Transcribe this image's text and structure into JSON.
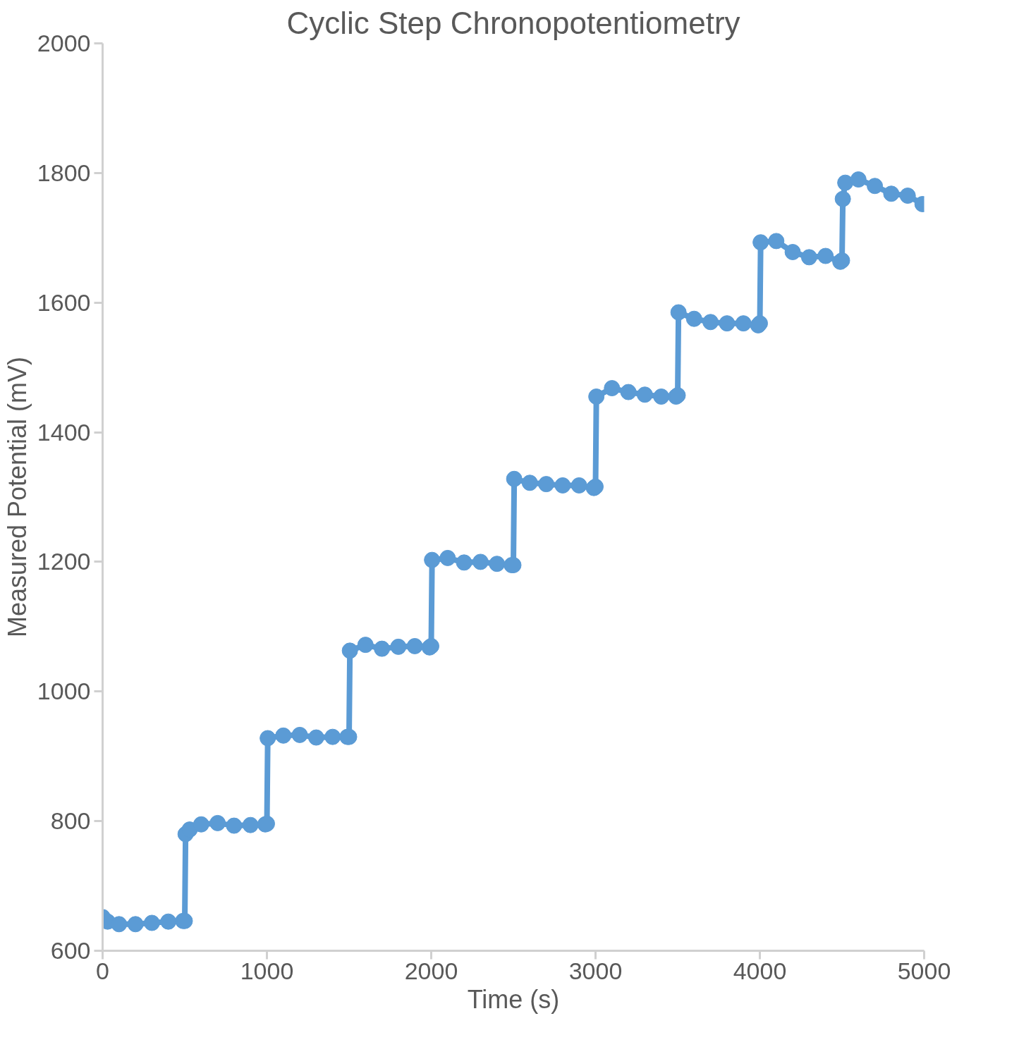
{
  "chart_data": {
    "type": "line",
    "title": "Cyclic Step Chronopotentiometry",
    "xlabel": "Time (s)",
    "ylabel": "Measured Potential (mV)",
    "xlim": [
      0,
      5000
    ],
    "xticks": [
      0,
      1000,
      2000,
      3000,
      4000,
      5000
    ],
    "ylim": [
      600,
      2000
    ],
    "yticks": [
      600,
      800,
      1000,
      1200,
      1400,
      1600,
      1800,
      2000
    ],
    "grid": false,
    "marker": "circle",
    "line_style": "solid",
    "series": [
      {
        "color": "#5b9bd5",
        "x": [
          0,
          30,
          100,
          200,
          300,
          400,
          490,
          500,
          505,
          530,
          600,
          700,
          800,
          900,
          990,
          1000,
          1005,
          1100,
          1200,
          1300,
          1400,
          1490,
          1500,
          1505,
          1600,
          1700,
          1800,
          1900,
          1990,
          2000,
          2005,
          2100,
          2200,
          2300,
          2400,
          2490,
          2500,
          2505,
          2600,
          2700,
          2800,
          2900,
          2990,
          3000,
          3005,
          3100,
          3200,
          3300,
          3400,
          3490,
          3500,
          3505,
          3600,
          3700,
          3800,
          3900,
          3990,
          4000,
          4005,
          4100,
          4200,
          4300,
          4400,
          4490,
          4500,
          4505,
          4520,
          4600,
          4700,
          4800,
          4900,
          4990
        ],
        "values": [
          652,
          645,
          641,
          641,
          643,
          645,
          646,
          646,
          780,
          787,
          795,
          797,
          793,
          794,
          795,
          796,
          928,
          932,
          933,
          929,
          930,
          930,
          930,
          1063,
          1072,
          1066,
          1069,
          1070,
          1068,
          1070,
          1203,
          1206,
          1199,
          1200,
          1197,
          1195,
          1195,
          1328,
          1322,
          1320,
          1318,
          1318,
          1314,
          1316,
          1455,
          1468,
          1462,
          1458,
          1455,
          1455,
          1457,
          1585,
          1575,
          1570,
          1568,
          1568,
          1565,
          1568,
          1693,
          1695,
          1678,
          1670,
          1672,
          1663,
          1665,
          1760,
          1785,
          1790,
          1780,
          1768,
          1765,
          1752
        ]
      }
    ]
  }
}
